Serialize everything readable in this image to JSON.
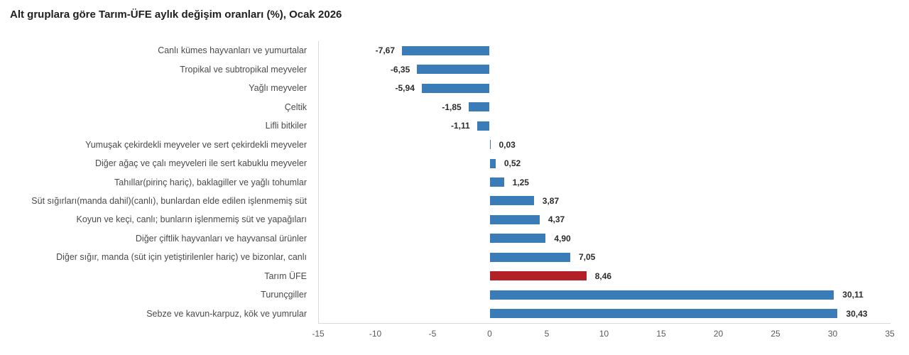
{
  "chart_data": {
    "type": "bar",
    "orientation": "horizontal",
    "title": "Alt gruplara göre Tarım-ÜFE aylık değişim oranları (%), Ocak 2026",
    "categories": [
      "Canlı kümes hayvanları ve yumurtalar",
      "Tropikal ve subtropikal meyveler",
      "Yağlı meyveler",
      "Çeltik",
      "Lifli bitkiler",
      "Yumuşak çekirdekli meyveler ve sert çekirdekli meyveler",
      "Diğer ağaç ve çalı meyveleri ile sert kabuklu meyveler",
      "Tahıllar(pirinç hariç), baklagiller ve yağlı tohumlar",
      "Süt sığırları(manda dahil)(canlı), bunlardan elde edilen işlenmemiş süt",
      "Koyun ve keçi, canlı; bunların işlenmemiş süt ve yapağıları",
      "Diğer çiftlik hayvanları ve hayvansal ürünler",
      "Diğer sığır, manda (süt için yetiştirilenler hariç) ve bizonlar, canlı",
      "Tarım ÜFE",
      "Turunçgiller",
      "Sebze ve kavun-karpuz, kök ve yumrular"
    ],
    "values": [
      -7.67,
      -6.35,
      -5.94,
      -1.85,
      -1.11,
      0.03,
      0.52,
      1.25,
      3.87,
      4.37,
      4.9,
      7.05,
      8.46,
      30.11,
      30.43
    ],
    "value_labels": [
      "-7,67",
      "-6,35",
      "-5,94",
      "-1,85",
      "-1,11",
      "0,03",
      "0,52",
      "1,25",
      "3,87",
      "4,37",
      "4,90",
      "7,05",
      "8,46",
      "30,11",
      "30,43"
    ],
    "highlight_index": 12,
    "highlight_category": "Tarım ÜFE",
    "xlabel": "",
    "ylabel": "",
    "xlim": [
      -15,
      35
    ],
    "xticks": [
      "-15",
      "-10",
      "-5",
      "0",
      "5",
      "10",
      "15",
      "20",
      "25",
      "30",
      "35"
    ],
    "grid": false,
    "legend": "none",
    "colors": {
      "bar": "#3a7cb8",
      "highlight": "#b22126",
      "axis_line": "#d9d9d9",
      "title_text": "#1f1f1f",
      "category_text": "#4a4a4a",
      "value_text": "#2b2b2b",
      "tick_text": "#595959"
    }
  }
}
